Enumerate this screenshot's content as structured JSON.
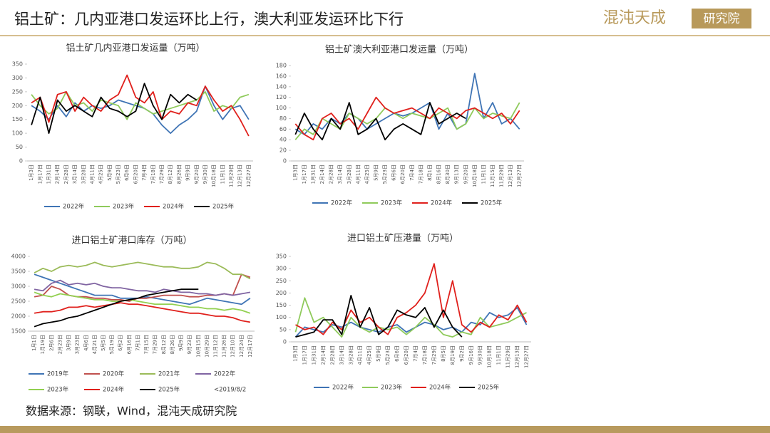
{
  "header": {
    "title": "铝土矿：几内亚港口发运环比上行，澳大利亚发运环比下行",
    "logo": "混沌天成",
    "logo_box": "研究院"
  },
  "source": "数据来源：钢联，Wind，混沌天成研究院",
  "chart_data": [
    {
      "type": "line",
      "title": "铝土矿几内亚港口发运量（万吨）",
      "categories": [
        "1月3日",
        "1月17日",
        "1月31日",
        "2月14日",
        "2月28日",
        "3月14日",
        "3月28日",
        "4月11日",
        "4月25日",
        "5月9日",
        "5月23日",
        "6月6日",
        "6月20日",
        "7月4日",
        "7月18日",
        "7月29日",
        "8月12日",
        "8月26日",
        "9月9日",
        "9月20日",
        "9月30日",
        "10月18日",
        "11月1日",
        "11月29日",
        "12月13日",
        "12月27日"
      ],
      "ylim": [
        0,
        350
      ],
      "yticks": [
        0,
        50,
        100,
        150,
        200,
        250,
        300,
        350
      ],
      "series": [
        {
          "name": "2022年",
          "color": "#3f74b5",
          "values": [
            200,
            180,
            150,
            200,
            160,
            210,
            180,
            200,
            190,
            200,
            220,
            210,
            200,
            190,
            170,
            130,
            100,
            130,
            150,
            180,
            270,
            200,
            150,
            190,
            200,
            150
          ]
        },
        {
          "name": "2023年",
          "color": "#8fca5b",
          "values": [
            240,
            200,
            170,
            190,
            250,
            200,
            210,
            180,
            220,
            210,
            200,
            150,
            210,
            190,
            170,
            180,
            190,
            200,
            210,
            220,
            250,
            180,
            200,
            190,
            230,
            240
          ]
        },
        {
          "name": "2024年",
          "color": "#e0201c",
          "values": [
            210,
            230,
            140,
            240,
            250,
            180,
            230,
            200,
            180,
            220,
            240,
            310,
            230,
            210,
            250,
            150,
            180,
            170,
            210,
            200,
            270,
            220,
            180,
            200,
            150,
            90
          ]
        },
        {
          "name": "2025年",
          "color": "#000000",
          "values": [
            130,
            230,
            100,
            220,
            180,
            200,
            180,
            160,
            230,
            190,
            180,
            160,
            180,
            280,
            200,
            150,
            240,
            210,
            240,
            220,
            null,
            null,
            null,
            null,
            null,
            null
          ]
        }
      ]
    },
    {
      "type": "line",
      "title": "铝土矿澳大利亚港口发运量（万吨）",
      "categories": [
        "1月3日",
        "1月17日",
        "1月31日",
        "2月14日",
        "2月28日",
        "3月14日",
        "3月28日",
        "4月11日",
        "4月25日",
        "5月9日",
        "5月23日",
        "6月6日",
        "6月20日",
        "7月4日",
        "7月18日",
        "8月1日",
        "8月16日",
        "8月30日",
        "9月13日",
        "9月20日",
        "10月18日",
        "11月1日",
        "11月15日",
        "11月29日",
        "12月13日",
        "12月27日"
      ],
      "ylim": [
        0,
        180
      ],
      "yticks": [
        0,
        20,
        40,
        60,
        80,
        100,
        120,
        140,
        160,
        180
      ],
      "series": [
        {
          "name": "2022年",
          "color": "#3f74b5",
          "values": [
            60,
            50,
            70,
            60,
            80,
            70,
            90,
            80,
            60,
            70,
            80,
            90,
            85,
            90,
            100,
            110,
            60,
            90,
            60,
            70,
            165,
            80,
            110,
            70,
            80,
            60
          ]
        },
        {
          "name": "2023年",
          "color": "#8fca5b",
          "values": [
            40,
            60,
            50,
            80,
            70,
            60,
            90,
            80,
            70,
            80,
            100,
            90,
            80,
            90,
            85,
            80,
            90,
            100,
            60,
            70,
            100,
            80,
            90,
            85,
            80,
            110
          ]
        },
        {
          "name": "2024年",
          "color": "#e0201c",
          "values": [
            70,
            50,
            40,
            80,
            90,
            70,
            80,
            60,
            90,
            120,
            100,
            90,
            95,
            100,
            90,
            80,
            100,
            90,
            80,
            95,
            100,
            90,
            80,
            90,
            70,
            95
          ]
        },
        {
          "name": "2025年",
          "color": "#000000",
          "values": [
            50,
            90,
            60,
            40,
            80,
            60,
            110,
            50,
            60,
            80,
            40,
            60,
            70,
            60,
            50,
            110,
            70,
            80,
            90,
            80,
            null,
            null,
            null,
            null,
            null,
            null
          ]
        }
      ]
    },
    {
      "type": "line",
      "title": "进口铝土矿港口库存（万吨）",
      "categories": [
        "1月1日",
        "1月19日",
        "2月6日",
        "2月23日",
        "3月9日",
        "3月23日",
        "4月6日",
        "4月21日",
        "5月5日",
        "5月19日",
        "6月2日",
        "6月16日",
        "7月1日",
        "7月15日",
        "7月29日",
        "8月12日",
        "8月26日",
        "9月9日",
        "9月23日",
        "10月15日",
        "10月29日",
        "11月12日",
        "11月26日",
        "12月10日",
        "12月24日",
        "12月17日"
      ],
      "ylim": [
        1500,
        4000
      ],
      "yticks": [
        1500,
        2000,
        2500,
        3000,
        3500,
        4000
      ],
      "legend_note": "<2019/8/2",
      "series": [
        {
          "name": "2019年",
          "color": "#3f74b5",
          "values": [
            3400,
            3300,
            3200,
            3100,
            3000,
            2900,
            2800,
            2700,
            2700,
            2700,
            2600,
            2600,
            2600,
            2650,
            2600,
            2550,
            2500,
            2450,
            2400,
            2500,
            2600,
            2550,
            2500,
            2450,
            2400,
            2600
          ]
        },
        {
          "name": "2020年",
          "color": "#c0504d",
          "values": [
            2650,
            2700,
            3000,
            2900,
            2700,
            2650,
            2650,
            2600,
            2600,
            2550,
            2550,
            2500,
            2600,
            2600,
            2650,
            2700,
            2700,
            2700,
            2650,
            2650,
            2700,
            2700,
            2750,
            2700,
            3400,
            3300
          ]
        },
        {
          "name": "2021年",
          "color": "#9bbb59",
          "values": [
            3450,
            3600,
            3500,
            3650,
            3700,
            3650,
            3700,
            3800,
            3700,
            3650,
            3700,
            3750,
            3800,
            3750,
            3700,
            3650,
            3650,
            3600,
            3600,
            3650,
            3800,
            3750,
            3600,
            3400,
            3400,
            3250
          ]
        },
        {
          "name": "2022年",
          "color": "#8064a2",
          "values": [
            2900,
            2850,
            3100,
            3200,
            3050,
            3100,
            3050,
            3100,
            3000,
            2950,
            2950,
            2900,
            2850,
            2850,
            2800,
            2900,
            2850,
            2800,
            2800,
            2750,
            2750,
            2700,
            2750,
            2700,
            2750,
            2800
          ]
        },
        {
          "name": "2023年",
          "color": "#92d050",
          "values": [
            2800,
            2700,
            2650,
            2750,
            2700,
            2650,
            2600,
            2550,
            2550,
            2500,
            2500,
            2550,
            2500,
            2450,
            2400,
            2400,
            2400,
            2350,
            2300,
            2300,
            2250,
            2250,
            2200,
            2250,
            2200,
            2100
          ]
        },
        {
          "name": "2024年",
          "color": "#e0201c",
          "values": [
            2100,
            2150,
            2150,
            2200,
            2300,
            2300,
            2350,
            2300,
            2350,
            2400,
            2450,
            2400,
            2400,
            2350,
            2300,
            2250,
            2200,
            2150,
            2100,
            2100,
            2050,
            2000,
            2000,
            1950,
            1850,
            1800
          ]
        },
        {
          "name": "2025年",
          "color": "#000000",
          "values": [
            1650,
            1750,
            1800,
            1850,
            1950,
            2000,
            2100,
            2200,
            2300,
            2400,
            2500,
            2550,
            2600,
            2700,
            2750,
            2800,
            2850,
            2900,
            2900,
            2900,
            null,
            null,
            null,
            null,
            null,
            null
          ]
        }
      ]
    },
    {
      "type": "line",
      "title": "进口铝土矿压港量（万吨）",
      "categories": [
        "1月3日",
        "1月17日",
        "1月31日",
        "2月14日",
        "2月28日",
        "3月14日",
        "3月28日",
        "4月11日",
        "4月25日",
        "5月9日",
        "5月23日",
        "6月6日",
        "6月20日",
        "7月4日",
        "7月18日",
        "7月29日",
        "8月5日",
        "8月19日",
        "9月2日",
        "9月16日",
        "9月30日",
        "10月18日",
        "11月1日",
        "11月29日",
        "12月13日",
        "12月27日"
      ],
      "ylim": [
        0,
        350
      ],
      "yticks": [
        0,
        50,
        100,
        150,
        200,
        250,
        300,
        350
      ],
      "series": [
        {
          "name": "2022年",
          "color": "#3f74b5",
          "values": [
            20,
            60,
            50,
            40,
            70,
            60,
            80,
            60,
            50,
            40,
            60,
            70,
            40,
            60,
            80,
            70,
            50,
            60,
            40,
            80,
            70,
            120,
            100,
            110,
            140,
            70
          ]
        },
        {
          "name": "2023年",
          "color": "#8fca5b",
          "values": [
            40,
            180,
            80,
            100,
            60,
            20,
            100,
            60,
            40,
            60,
            50,
            60,
            30,
            60,
            100,
            70,
            30,
            20,
            40,
            30,
            100,
            60,
            70,
            80,
            100,
            120
          ]
        },
        {
          "name": "2024年",
          "color": "#e0201c",
          "values": [
            70,
            50,
            60,
            30,
            80,
            50,
            130,
            80,
            100,
            60,
            30,
            100,
            120,
            150,
            200,
            320,
            100,
            250,
            70,
            40,
            80,
            60,
            110,
            90,
            150,
            80
          ]
        },
        {
          "name": "2025年",
          "color": "#000000",
          "values": [
            20,
            30,
            40,
            90,
            90,
            30,
            190,
            60,
            140,
            30,
            60,
            130,
            110,
            100,
            140,
            60,
            130,
            60,
            20,
            null,
            null,
            null,
            null,
            null,
            null,
            null
          ]
        }
      ]
    }
  ]
}
